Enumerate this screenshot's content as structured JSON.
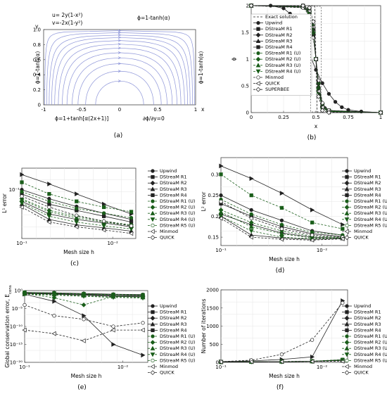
{
  "charts": [
    {
      "id": "a",
      "type": "streamline",
      "caption": "(a)",
      "equations": [
        "u= 2y(1-x²)",
        "v=-2x(1-y²)"
      ],
      "top_label": "ϕ=1-tanh(α)",
      "left_label": "ϕ=1-tanh(α)",
      "right_label": "ϕ=1-tanh(α)",
      "bottom_left_label": "ϕ=1+tanh[α(2x+1)]",
      "bottom_right_label": "∂ϕ/∂y=0",
      "xlabel": "x",
      "ylabel": "y",
      "xticks": [
        "-1",
        "-0.5",
        "0",
        "0.5",
        "1"
      ],
      "yticks": [
        "0",
        "0.2",
        "0.4",
        "0.6",
        "0.8",
        "1.0"
      ],
      "stream_color": "#8c94d8"
    },
    {
      "id": "b",
      "type": "line",
      "caption": "(b)",
      "xlabel": "x",
      "ylabel": "ϕ",
      "xticks": [
        "0",
        "0.25",
        "0.5",
        "0.75",
        "1"
      ],
      "yticks": [
        "0",
        "0.5",
        "1",
        "1.5",
        "2"
      ],
      "xlim": [
        0,
        1
      ],
      "ylim": [
        0,
        2
      ],
      "legend": [
        "Exact solution",
        "Upwind",
        "DStreaM R1",
        "DStreaM R2",
        "DStreaM R3",
        "DStreaM R4",
        "DStreaM R1 (U)",
        "DStreaM R2 (U)",
        "DStreaM R3 (U)",
        "DStreaM R4 (U)",
        "Minmod",
        "QUICK",
        "SUPERBEE"
      ]
    },
    {
      "id": "c",
      "type": "line",
      "caption": "(c)",
      "xlabel": "Mesh size h",
      "ylabel": "L¹ error",
      "xscale": "log",
      "yscale": "log",
      "xticks": [
        "10⁻¹",
        "10⁻²"
      ],
      "yticks": [
        "10⁻¹"
      ],
      "x": [
        0.1,
        0.05,
        0.025,
        0.0125,
        0.00625
      ],
      "legend": [
        "Upwind",
        "DStreaM R1",
        "DStreaM R2",
        "DStreaM R3",
        "DStreaM R4",
        "DStreaM R1 (U)",
        "DStreaM R2 (U)",
        "DStreaM R3 (U)",
        "DStreaM R4 (U)",
        "DStreaM R5 (U)",
        "Minmod",
        "QUICK"
      ]
    },
    {
      "id": "d",
      "type": "line",
      "caption": "(d)",
      "xlabel": "Mesh size h",
      "ylabel": "L² error",
      "xscale": "log",
      "xticks": [
        "10⁻¹",
        "10⁻²"
      ],
      "yticks": [
        "0.15",
        "0.2",
        "0.25",
        "0.3"
      ],
      "x": [
        0.1,
        0.05,
        0.025,
        0.0125,
        0.00625
      ],
      "legend": [
        "Upwind",
        "DStreaM R1",
        "DStreaM R2",
        "DStreaM R3",
        "DStreaM R4",
        "DStreaM R1 (U)",
        "DStreaM R2 (U)",
        "DStreaM R3 (U)",
        "DStreaM R4 (U)",
        "DStreaM R5 (U)",
        "Minmod",
        "QUICK"
      ]
    },
    {
      "id": "e",
      "type": "line",
      "caption": "(e)",
      "xlabel": "Mesh size h",
      "ylabel": "Global conservation error, E",
      "ylabel_sub": "cons",
      "xscale": "log",
      "yscale": "log",
      "xticks": [
        "10⁻¹",
        "10⁻²"
      ],
      "yticks": [
        "10⁰",
        "10⁻⁵",
        "10⁻¹⁰",
        "10⁻¹⁵",
        "10⁻²⁰"
      ],
      "x": [
        0.1,
        0.05,
        0.025,
        0.0125,
        0.00625
      ],
      "legend": [
        "Upwind",
        "DStreaM R1",
        "DStreaM R2",
        "DStreaM R3",
        "DStreaM R4",
        "DStreaM R1 (U)",
        "DStreaM R2 (U)",
        "DStreaM R3 (U)",
        "DStreaM R4 (U)",
        "DStreaM R5 (U)",
        "Minmod",
        "QUICK"
      ]
    },
    {
      "id": "f",
      "type": "line",
      "caption": "(f)",
      "xlabel": "Mesh size h",
      "ylabel": "Number of iterations",
      "xscale": "log",
      "xticks": [
        "10⁻¹",
        "10⁻²"
      ],
      "yticks": [
        "0",
        "500",
        "1000",
        "1500",
        "2000"
      ],
      "x": [
        0.1,
        0.05,
        0.025,
        0.0125,
        0.00625
      ],
      "legend": [
        "Upwind",
        "DStreaM R1",
        "DStreaM R2",
        "DStreaM R3",
        "DStreaM R4",
        "DStreaM R1 (U)",
        "DStreaM R2 (U)",
        "DStreaM R3 (U)",
        "DStreaM R4 (U)",
        "DStreaM R5 (U)",
        "Minmod",
        "QUICK"
      ]
    }
  ],
  "chart_data": [
    {
      "panel": "b",
      "type": "line",
      "xlabel": "x",
      "ylabel": "ϕ",
      "xlim": [
        0,
        1
      ],
      "ylim": [
        0,
        2
      ],
      "series": [
        {
          "name": "Exact solution",
          "x": [
            0,
            0.49,
            0.5,
            0.51,
            1
          ],
          "y": [
            2,
            2,
            1,
            0,
            0
          ]
        },
        {
          "name": "Upwind",
          "x": [
            0,
            0.15,
            0.25,
            0.3,
            0.35,
            0.4,
            0.45,
            0.5,
            0.55,
            0.6,
            0.65,
            0.7,
            0.75,
            0.85,
            1
          ],
          "y": [
            2,
            2,
            1.95,
            1.85,
            1.65,
            1.35,
            1.1,
            0.8,
            0.55,
            0.35,
            0.2,
            0.1,
            0.05,
            0.02,
            0
          ]
        },
        {
          "name": "DStreaM R1",
          "x": [
            0,
            0.4,
            0.45,
            0.48,
            0.5,
            0.52,
            0.55,
            0.6,
            1
          ],
          "y": [
            2,
            2,
            1.92,
            1.6,
            1.0,
            0.4,
            0.1,
            0.02,
            0
          ]
        },
        {
          "name": "DStreaM R2",
          "x": [
            0,
            0.4,
            0.45,
            0.48,
            0.5,
            0.52,
            0.55,
            0.6,
            1
          ],
          "y": [
            2,
            1.98,
            1.9,
            1.55,
            1.0,
            0.45,
            0.12,
            0.03,
            0
          ]
        },
        {
          "name": "DStreaM R3",
          "x": [
            0,
            0.4,
            0.45,
            0.48,
            0.5,
            0.52,
            0.55,
            0.6,
            1
          ],
          "y": [
            2,
            1.98,
            1.88,
            1.5,
            1.0,
            0.5,
            0.14,
            0.03,
            0
          ]
        },
        {
          "name": "DStreaM R4",
          "x": [
            0,
            0.4,
            0.45,
            0.48,
            0.5,
            0.52,
            0.55,
            0.6,
            1
          ],
          "y": [
            2,
            1.97,
            1.86,
            1.45,
            1.0,
            0.55,
            0.15,
            0.04,
            0
          ]
        },
        {
          "name": "DStreaM R1 (U)",
          "x": [
            0,
            0.4,
            0.45,
            0.48,
            0.5,
            0.52,
            0.55,
            0.6,
            1
          ],
          "y": [
            2,
            2,
            1.93,
            1.62,
            1.0,
            0.38,
            0.08,
            0.02,
            0
          ]
        },
        {
          "name": "DStreaM R2 (U)",
          "x": [
            0,
            0.4,
            0.45,
            0.48,
            0.5,
            0.52,
            0.55,
            0.6,
            1
          ],
          "y": [
            2,
            1.99,
            1.9,
            1.58,
            1.0,
            0.42,
            0.1,
            0.02,
            0
          ]
        },
        {
          "name": "DStreaM R3 (U)",
          "x": [
            0,
            0.4,
            0.45,
            0.48,
            0.5,
            0.52,
            0.55,
            0.6,
            1
          ],
          "y": [
            2,
            1.98,
            1.88,
            1.52,
            1.0,
            0.48,
            0.12,
            0.03,
            0
          ]
        },
        {
          "name": "DStreaM R4 (U)",
          "x": [
            0,
            0.4,
            0.45,
            0.48,
            0.5,
            0.52,
            0.55,
            0.6,
            1
          ],
          "y": [
            2,
            1.97,
            1.85,
            1.47,
            1.0,
            0.53,
            0.14,
            0.03,
            0
          ]
        },
        {
          "name": "Minmod",
          "x": [
            0,
            0.4,
            0.45,
            0.48,
            0.5,
            0.52,
            0.55,
            0.6,
            1
          ],
          "y": [
            2,
            1.96,
            1.82,
            1.4,
            1.0,
            0.6,
            0.18,
            0.04,
            0
          ]
        },
        {
          "name": "QUICK",
          "x": [
            0,
            0.4,
            0.45,
            0.48,
            0.5,
            0.52,
            0.55,
            0.6,
            1
          ],
          "y": [
            2,
            1.99,
            1.9,
            1.6,
            1.0,
            0.4,
            0.1,
            0.01,
            0
          ]
        },
        {
          "name": "SUPERBEE",
          "x": [
            0,
            0.4,
            0.45,
            0.48,
            0.5,
            0.52,
            0.55,
            0.6,
            1
          ],
          "y": [
            2,
            2,
            1.96,
            1.7,
            1.0,
            0.3,
            0.04,
            0.0,
            0
          ]
        }
      ]
    },
    {
      "panel": "c",
      "type": "line",
      "xlabel": "Mesh size h",
      "ylabel": "L¹ error",
      "x": [
        0.1,
        0.05,
        0.025,
        0.0125,
        0.00625
      ],
      "ylim": [
        0.03,
        0.2
      ],
      "series": [
        {
          "name": "Upwind",
          "values": [
            0.145,
            0.115,
            0.09,
            0.07,
            0.055
          ]
        },
        {
          "name": "DStreaM R1",
          "values": [
            0.1,
            0.08,
            0.066,
            0.056,
            0.048
          ]
        },
        {
          "name": "DStreaM R2",
          "values": [
            0.09,
            0.07,
            0.06,
            0.052,
            0.045
          ]
        },
        {
          "name": "DStreaM R3",
          "values": [
            0.075,
            0.055,
            0.048,
            0.044,
            0.04
          ]
        },
        {
          "name": "DStreaM R4",
          "values": [
            0.07,
            0.048,
            0.042,
            0.039,
            0.036
          ]
        },
        {
          "name": "DStreaM R1 (U)",
          "values": [
            0.12,
            0.09,
            0.075,
            0.065,
            0.058
          ]
        },
        {
          "name": "DStreaM R2 (U)",
          "values": [
            0.095,
            0.075,
            0.063,
            0.056,
            0.05
          ]
        },
        {
          "name": "DStreaM R3 (U)",
          "values": [
            0.08,
            0.06,
            0.052,
            0.046,
            0.042
          ]
        },
        {
          "name": "DStreaM R4 (U)",
          "values": [
            0.078,
            0.058,
            0.05,
            0.045,
            0.041
          ]
        },
        {
          "name": "DStreaM R5 (U)",
          "values": [
            0.072,
            0.052,
            0.045,
            0.041,
            0.038
          ]
        },
        {
          "name": "Minmod",
          "values": [
            0.085,
            0.065,
            0.053,
            0.046,
            0.041
          ]
        },
        {
          "name": "QUICK",
          "values": [
            0.065,
            0.045,
            0.04,
            0.037,
            0.034
          ]
        }
      ]
    },
    {
      "panel": "d",
      "type": "line",
      "xlabel": "Mesh size h",
      "ylabel": "L² error",
      "x": [
        0.1,
        0.05,
        0.025,
        0.0125,
        0.00625
      ],
      "ylim": [
        0.13,
        0.34
      ],
      "series": [
        {
          "name": "Upwind",
          "values": [
            0.32,
            0.29,
            0.255,
            0.215,
            0.18
          ]
        },
        {
          "name": "DStreaM R1",
          "values": [
            0.25,
            0.215,
            0.19,
            0.165,
            0.155
          ]
        },
        {
          "name": "DStreaM R2",
          "values": [
            0.23,
            0.2,
            0.175,
            0.158,
            0.152
          ]
        },
        {
          "name": "DStreaM R3",
          "values": [
            0.205,
            0.18,
            0.16,
            0.15,
            0.148
          ]
        },
        {
          "name": "DStreaM R4",
          "values": [
            0.2,
            0.155,
            0.148,
            0.145,
            0.147
          ]
        },
        {
          "name": "DStreaM R1 (U)",
          "values": [
            0.3,
            0.25,
            0.22,
            0.185,
            0.17
          ]
        },
        {
          "name": "DStreaM R2 (U)",
          "values": [
            0.24,
            0.205,
            0.18,
            0.162,
            0.155
          ]
        },
        {
          "name": "DStreaM R3 (U)",
          "values": [
            0.215,
            0.185,
            0.165,
            0.152,
            0.15
          ]
        },
        {
          "name": "DStreaM R4 (U)",
          "values": [
            0.21,
            0.175,
            0.158,
            0.148,
            0.149
          ]
        },
        {
          "name": "DStreaM R5 (U)",
          "values": [
            0.2,
            0.165,
            0.15,
            0.146,
            0.148
          ]
        },
        {
          "name": "Minmod",
          "values": [
            0.235,
            0.195,
            0.17,
            0.155,
            0.15
          ]
        },
        {
          "name": "QUICK",
          "values": [
            0.195,
            0.15,
            0.145,
            0.143,
            0.146
          ]
        }
      ]
    },
    {
      "panel": "e",
      "type": "line",
      "xlabel": "Mesh size h",
      "ylabel": "Global conservation error, E_cons",
      "x": [
        0.1,
        0.05,
        0.025,
        0.0125,
        0.00625
      ],
      "ylim_log10": [
        -20,
        0
      ],
      "series": [
        {
          "name": "Upwind",
          "values_log10": [
            -1,
            -3,
            -7,
            -15,
            -18
          ]
        },
        {
          "name": "DStreaM R1",
          "values_log10": [
            -0.5,
            -0.6,
            -0.8,
            -1.0,
            -1.1
          ]
        },
        {
          "name": "DStreaM R2",
          "values_log10": [
            -0.6,
            -0.8,
            -1.0,
            -1.2,
            -1.3
          ]
        },
        {
          "name": "DStreaM R3",
          "values_log10": [
            -0.7,
            -0.9,
            -1.1,
            -1.4,
            -1.5
          ]
        },
        {
          "name": "DStreaM R4",
          "values_log10": [
            -0.8,
            -1.0,
            -1.3,
            -1.6,
            -1.7
          ]
        },
        {
          "name": "DStreaM R1 (U)",
          "values_log10": [
            -0.5,
            -0.7,
            -0.9,
            -1.1,
            -1.2
          ]
        },
        {
          "name": "DStreaM R2 (U)",
          "values_log10": [
            -0.6,
            -0.8,
            -1.0,
            -1.2,
            -1.4
          ]
        },
        {
          "name": "DStreaM R3 (U)",
          "values_log10": [
            -0.8,
            -2,
            -4,
            -1.6,
            -1.8
          ]
        },
        {
          "name": "DStreaM R4 (U)",
          "values_log10": [
            -0.9,
            -1.1,
            -1.4,
            -1.7,
            -1.9
          ]
        },
        {
          "name": "DStreaM R5 (U)",
          "values_log10": [
            -1.0,
            -1.3,
            -1.6,
            -1.9,
            -2.1
          ]
        },
        {
          "name": "Minmod",
          "values_log10": [
            -4,
            -7,
            -8,
            -10,
            -9
          ]
        },
        {
          "name": "QUICK",
          "values_log10": [
            -11,
            -12,
            -14,
            -11,
            -11
          ]
        }
      ]
    },
    {
      "panel": "f",
      "type": "line",
      "xlabel": "Mesh size h",
      "ylabel": "Number of iterations",
      "x": [
        0.1,
        0.05,
        0.025,
        0.0125,
        0.00625
      ],
      "ylim": [
        0,
        2000
      ],
      "series": [
        {
          "name": "Upwind",
          "values": [
            20,
            40,
            80,
            150,
            1700
          ]
        },
        {
          "name": "DStreaM R1",
          "values": [
            10,
            15,
            20,
            30,
            70
          ]
        },
        {
          "name": "DStreaM R2",
          "values": [
            10,
            15,
            20,
            30,
            65
          ]
        },
        {
          "name": "DStreaM R3",
          "values": [
            10,
            15,
            20,
            28,
            60
          ]
        },
        {
          "name": "DStreaM R4",
          "values": [
            10,
            15,
            20,
            28,
            55
          ]
        },
        {
          "name": "DStreaM R1 (U)",
          "values": [
            10,
            15,
            22,
            32,
            75
          ]
        },
        {
          "name": "DStreaM R2 (U)",
          "values": [
            10,
            15,
            22,
            30,
            70
          ]
        },
        {
          "name": "DStreaM R3 (U)",
          "values": [
            10,
            15,
            21,
            30,
            65
          ]
        },
        {
          "name": "DStreaM R4 (U)",
          "values": [
            10,
            15,
            21,
            29,
            60
          ]
        },
        {
          "name": "DStreaM R5 (U)",
          "values": [
            10,
            15,
            20,
            28,
            55
          ]
        },
        {
          "name": "Minmod",
          "values": [
            20,
            60,
            220,
            620,
            1640
          ]
        },
        {
          "name": "QUICK",
          "values": [
            10,
            15,
            20,
            25,
            30
          ]
        }
      ]
    }
  ],
  "styles": {
    "colors": {
      "black": "#222222",
      "green": "#1a5e1a",
      "grey": "#666666",
      "stream": "#8c94d8"
    },
    "dash_series": [
      "Exact solution",
      "DStreaM R1 (U)",
      "DStreaM R2 (U)",
      "DStreaM R3 (U)",
      "DStreaM R4 (U)",
      "DStreaM R5 (U)",
      "Minmod",
      "QUICK",
      "SUPERBEE"
    ]
  }
}
